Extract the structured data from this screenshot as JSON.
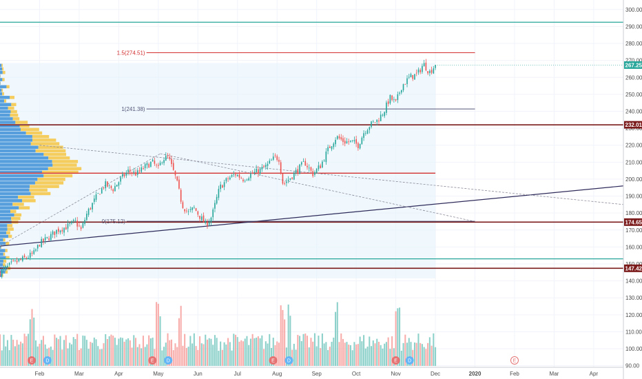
{
  "chart_data": {
    "type": "candlestick",
    "symbol": "",
    "title": "",
    "y_axis": {
      "position": "right",
      "range": [
        88,
        305
      ],
      "ticks": [
        90,
        100,
        110,
        120,
        130,
        140,
        150,
        160,
        170,
        180,
        190,
        200,
        210,
        220,
        230,
        240,
        250,
        260,
        270,
        280,
        290,
        300
      ],
      "tick_labels": [
        "90.00",
        "100.00",
        "110.00",
        "120.00",
        "130.00",
        "140.00",
        "150.00",
        "160.00",
        "170.00",
        "180.00",
        "190.00",
        "200.00",
        "210.00",
        "220.00",
        "230.00",
        "240.00",
        "250.00",
        "260.00",
        "270.00",
        "280.00",
        "290.00",
        "300.00"
      ]
    },
    "x_axis": {
      "range_months": [
        0,
        15.75
      ],
      "ticks": [
        {
          "label": "Feb",
          "month": 1.0
        },
        {
          "label": "Mar",
          "month": 2.0
        },
        {
          "label": "Apr",
          "month": 3.0
        },
        {
          "label": "May",
          "month": 4.0
        },
        {
          "label": "Jun",
          "month": 5.0
        },
        {
          "label": "Jul",
          "month": 6.0
        },
        {
          "label": "Aug",
          "month": 7.0
        },
        {
          "label": "Sep",
          "month": 8.0
        },
        {
          "label": "Oct",
          "month": 9.0
        },
        {
          "label": "Nov",
          "month": 10.0
        },
        {
          "label": "Dec",
          "month": 11.0
        },
        {
          "label": "2020",
          "month": 12.0
        },
        {
          "label": "Feb",
          "month": 13.0
        },
        {
          "label": "Mar",
          "month": 14.0
        },
        {
          "label": "Apr",
          "month": 15.0
        }
      ]
    },
    "price_points": [
      [
        0.0,
        145
      ],
      [
        0.3,
        150
      ],
      [
        0.6,
        153
      ],
      [
        0.85,
        156
      ],
      [
        1.0,
        162
      ],
      [
        1.2,
        165
      ],
      [
        1.45,
        170
      ],
      [
        1.7,
        172
      ],
      [
        1.9,
        175
      ],
      [
        2.05,
        170
      ],
      [
        2.2,
        180
      ],
      [
        2.45,
        190
      ],
      [
        2.65,
        197
      ],
      [
        2.85,
        194
      ],
      [
        3.05,
        200
      ],
      [
        3.25,
        205
      ],
      [
        3.45,
        203
      ],
      [
        3.65,
        207
      ],
      [
        3.85,
        210
      ],
      [
        4.0,
        206
      ],
      [
        4.1,
        212
      ],
      [
        4.25,
        213
      ],
      [
        4.45,
        200
      ],
      [
        4.6,
        185
      ],
      [
        4.75,
        180
      ],
      [
        4.9,
        183
      ],
      [
        5.05,
        178
      ],
      [
        5.2,
        173
      ],
      [
        5.35,
        178
      ],
      [
        5.55,
        195
      ],
      [
        5.75,
        200
      ],
      [
        5.95,
        203
      ],
      [
        6.15,
        200
      ],
      [
        6.35,
        203
      ],
      [
        6.55,
        205
      ],
      [
        6.75,
        208
      ],
      [
        6.95,
        213
      ],
      [
        7.05,
        212
      ],
      [
        7.15,
        197
      ],
      [
        7.3,
        200
      ],
      [
        7.5,
        205
      ],
      [
        7.7,
        210
      ],
      [
        7.9,
        203
      ],
      [
        8.1,
        208
      ],
      [
        8.3,
        218
      ],
      [
        8.5,
        225
      ],
      [
        8.7,
        222
      ],
      [
        8.9,
        222
      ],
      [
        9.05,
        220
      ],
      [
        9.2,
        228
      ],
      [
        9.35,
        232
      ],
      [
        9.55,
        235
      ],
      [
        9.7,
        240
      ],
      [
        9.85,
        248
      ],
      [
        10.0,
        245
      ],
      [
        10.15,
        255
      ],
      [
        10.35,
        260
      ],
      [
        10.55,
        262
      ],
      [
        10.7,
        268
      ],
      [
        10.85,
        263
      ],
      [
        11.0,
        267.25
      ]
    ],
    "candles_per_month": 21,
    "volume": {
      "range": [
        0,
        30000000
      ],
      "seed": 7,
      "spike_months": [
        0.8,
        4.0,
        4.55,
        7.15,
        7.3,
        8.5,
        10.05
      ]
    },
    "volume_profile": {
      "price_range": [
        142,
        268
      ],
      "levels": 60,
      "peak_price": 207,
      "max_width_months": 2.1,
      "up_color": "#f5c542",
      "down_color": "#3b8fd6"
    },
    "horizontal_levels": [
      {
        "price": 292.5,
        "color": "#26a69a",
        "kind": "line"
      },
      {
        "price": 232.01,
        "color": "#7b1a1a",
        "kind": "tagged",
        "label": "232.01"
      },
      {
        "price": 174.65,
        "color": "#7b1a1a",
        "kind": "tagged",
        "label": "174.65"
      },
      {
        "price": 147.42,
        "color": "#7b1a1a",
        "kind": "tagged",
        "label": "147.42"
      },
      {
        "price": 153.0,
        "color": "#26a69a",
        "kind": "line"
      },
      {
        "price": 203.5,
        "color": "#d32f2f",
        "kind": "partial",
        "x_end_month": 11.0
      }
    ],
    "current_price": {
      "value": 267.25,
      "label": "267.25",
      "color": "#26a69a"
    },
    "fibonacci": [
      {
        "label": "1.5(274.51)",
        "price": 274.51,
        "color": "#d32f2f",
        "x_start_month": 3.7,
        "x_end_month": 12.0
      },
      {
        "label": "1(241.38)",
        "price": 241.38,
        "color": "#555577",
        "x_start_month": 3.7,
        "x_end_month": 12.0
      },
      {
        "label": "0(175.12)",
        "price": 175.12,
        "color": "#555577",
        "x_start_month": 3.2,
        "x_end_month": 12.0
      }
    ],
    "trendlines": [
      {
        "from": [
          0.0,
          160.5
        ],
        "to": [
          15.75,
          196
        ],
        "color": "#2d2a5a",
        "style": "solid"
      },
      {
        "from": [
          0.0,
          160.5
        ],
        "to": [
          4.05,
          215
        ],
        "color": "#8a8a9a",
        "style": "dashed"
      },
      {
        "from": [
          4.05,
          215
        ],
        "to": [
          12.0,
          175
        ],
        "color": "#8a8a9a",
        "style": "dashed"
      },
      {
        "from": [
          1.0,
          220
        ],
        "to": [
          15.75,
          185
        ],
        "color": "#8a8a9a",
        "style": "dashed"
      }
    ],
    "range_box": {
      "x_start_month": 0,
      "x_end_month": 11.0,
      "price_low": 141.5,
      "price_high": 268.5,
      "color": "#e3f2fb"
    },
    "events": [
      {
        "type": "E",
        "month": 0.8
      },
      {
        "type": "D",
        "month": 1.2
      },
      {
        "type": "E",
        "month": 3.85
      },
      {
        "type": "D",
        "month": 4.25
      },
      {
        "type": "E",
        "month": 6.9
      },
      {
        "type": "D",
        "month": 7.3
      },
      {
        "type": "E",
        "month": 10.0
      },
      {
        "type": "D",
        "month": 10.35
      },
      {
        "type": "E",
        "month": 13.0,
        "future": true
      }
    ],
    "colors": {
      "up": "#26a69a",
      "down": "#ef5350",
      "volume_up": "#80cbc4",
      "volume_down": "#f7a3a1",
      "grid": "#f0f3fa",
      "axis_text": "#4a4a4a"
    }
  }
}
